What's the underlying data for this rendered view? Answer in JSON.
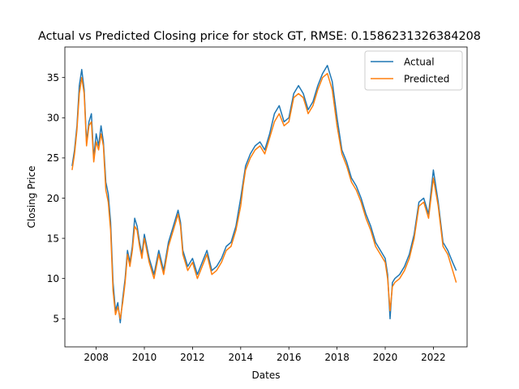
{
  "chart_data": {
    "type": "line",
    "title": "Actual vs Predicted Closing price for stock GT, RMSE: 0.1586231326384208",
    "xlabel": "Dates",
    "ylabel": "Closing Price",
    "xlim": [
      2006.7,
      2023.4
    ],
    "ylim": [
      1.5,
      38.8
    ],
    "x_ticks": [
      {
        "value": 2008,
        "label": "2008"
      },
      {
        "value": 2010,
        "label": "2010"
      },
      {
        "value": 2012,
        "label": "2012"
      },
      {
        "value": 2014,
        "label": "2014"
      },
      {
        "value": 2016,
        "label": "2016"
      },
      {
        "value": 2018,
        "label": "2018"
      },
      {
        "value": 2020,
        "label": "2020"
      },
      {
        "value": 2022,
        "label": "2022"
      }
    ],
    "y_ticks": [
      {
        "value": 5,
        "label": "5"
      },
      {
        "value": 10,
        "label": "10"
      },
      {
        "value": 15,
        "label": "15"
      },
      {
        "value": 20,
        "label": "20"
      },
      {
        "value": 25,
        "label": "25"
      },
      {
        "value": 30,
        "label": "30"
      },
      {
        "value": 35,
        "label": "35"
      }
    ],
    "grid": false,
    "legend_position": "top-right",
    "x": [
      2007.0,
      2007.1,
      2007.2,
      2007.3,
      2007.4,
      2007.5,
      2007.6,
      2007.7,
      2007.8,
      2007.9,
      2008.0,
      2008.1,
      2008.2,
      2008.3,
      2008.4,
      2008.5,
      2008.6,
      2008.7,
      2008.8,
      2008.9,
      2009.0,
      2009.1,
      2009.2,
      2009.3,
      2009.4,
      2009.5,
      2009.6,
      2009.7,
      2009.8,
      2009.9,
      2010.0,
      2010.2,
      2010.4,
      2010.6,
      2010.8,
      2011.0,
      2011.2,
      2011.4,
      2011.5,
      2011.6,
      2011.8,
      2012.0,
      2012.2,
      2012.4,
      2012.6,
      2012.8,
      2013.0,
      2013.2,
      2013.4,
      2013.6,
      2013.8,
      2014.0,
      2014.1,
      2014.2,
      2014.4,
      2014.6,
      2014.8,
      2015.0,
      2015.2,
      2015.4,
      2015.6,
      2015.8,
      2016.0,
      2016.2,
      2016.4,
      2016.6,
      2016.8,
      2017.0,
      2017.2,
      2017.4,
      2017.6,
      2017.8,
      2018.0,
      2018.2,
      2018.4,
      2018.6,
      2018.8,
      2019.0,
      2019.2,
      2019.4,
      2019.6,
      2019.8,
      2020.0,
      2020.1,
      2020.2,
      2020.3,
      2020.4,
      2020.6,
      2020.8,
      2021.0,
      2021.2,
      2021.4,
      2021.6,
      2021.8,
      2022.0,
      2022.2,
      2022.4,
      2022.6,
      2022.8,
      2022.95
    ],
    "series": [
      {
        "name": "Actual",
        "color": "#1f77b4",
        "values": [
          24.0,
          26.0,
          29.0,
          34.0,
          36.0,
          33.5,
          27.0,
          29.5,
          30.5,
          25.0,
          28.0,
          26.5,
          29.0,
          27.0,
          22.0,
          20.5,
          17.0,
          9.5,
          6.0,
          7.0,
          4.5,
          7.5,
          10.0,
          13.5,
          12.0,
          14.0,
          17.5,
          16.5,
          14.5,
          13.0,
          15.5,
          12.5,
          10.5,
          13.5,
          11.0,
          14.5,
          16.5,
          18.5,
          17.0,
          13.5,
          11.5,
          12.5,
          10.5,
          12.0,
          13.5,
          11.0,
          11.5,
          12.5,
          14.0,
          14.5,
          16.5,
          20.0,
          22.0,
          24.0,
          25.5,
          26.5,
          27.0,
          26.0,
          28.0,
          30.5,
          31.5,
          29.5,
          30.0,
          33.0,
          34.0,
          33.0,
          31.0,
          32.0,
          34.0,
          35.5,
          36.5,
          34.5,
          30.0,
          26.0,
          24.5,
          22.5,
          21.5,
          20.0,
          18.0,
          16.5,
          14.5,
          13.5,
          12.5,
          10.5,
          5.0,
          9.5,
          10.0,
          10.5,
          11.5,
          13.0,
          15.5,
          19.5,
          20.0,
          18.0,
          23.5,
          19.5,
          14.5,
          13.5,
          12.0,
          11.0
        ]
      },
      {
        "name": "Predicted",
        "color": "#ff7f0e",
        "values": [
          23.5,
          25.5,
          28.5,
          33.0,
          35.0,
          33.0,
          26.5,
          29.0,
          29.5,
          24.5,
          27.0,
          26.0,
          28.0,
          26.5,
          21.0,
          19.5,
          16.0,
          8.5,
          5.5,
          6.5,
          5.0,
          7.0,
          9.5,
          13.0,
          11.5,
          13.5,
          16.5,
          16.0,
          14.0,
          12.5,
          15.0,
          12.0,
          10.0,
          13.0,
          10.5,
          14.0,
          16.0,
          18.0,
          16.5,
          13.0,
          11.0,
          12.0,
          10.0,
          11.5,
          13.0,
          10.5,
          11.0,
          12.0,
          13.5,
          14.0,
          16.0,
          19.0,
          21.5,
          23.5,
          25.0,
          26.0,
          26.5,
          25.5,
          27.5,
          29.5,
          30.5,
          29.0,
          29.5,
          32.5,
          33.0,
          32.5,
          30.5,
          31.5,
          33.5,
          35.0,
          35.5,
          33.5,
          29.0,
          25.5,
          24.0,
          22.0,
          21.0,
          19.5,
          17.5,
          16.0,
          14.0,
          13.0,
          12.0,
          10.0,
          6.0,
          9.0,
          9.5,
          10.0,
          11.0,
          12.5,
          15.0,
          19.0,
          19.5,
          17.5,
          22.5,
          19.0,
          14.0,
          13.0,
          11.0,
          9.5
        ]
      }
    ]
  }
}
